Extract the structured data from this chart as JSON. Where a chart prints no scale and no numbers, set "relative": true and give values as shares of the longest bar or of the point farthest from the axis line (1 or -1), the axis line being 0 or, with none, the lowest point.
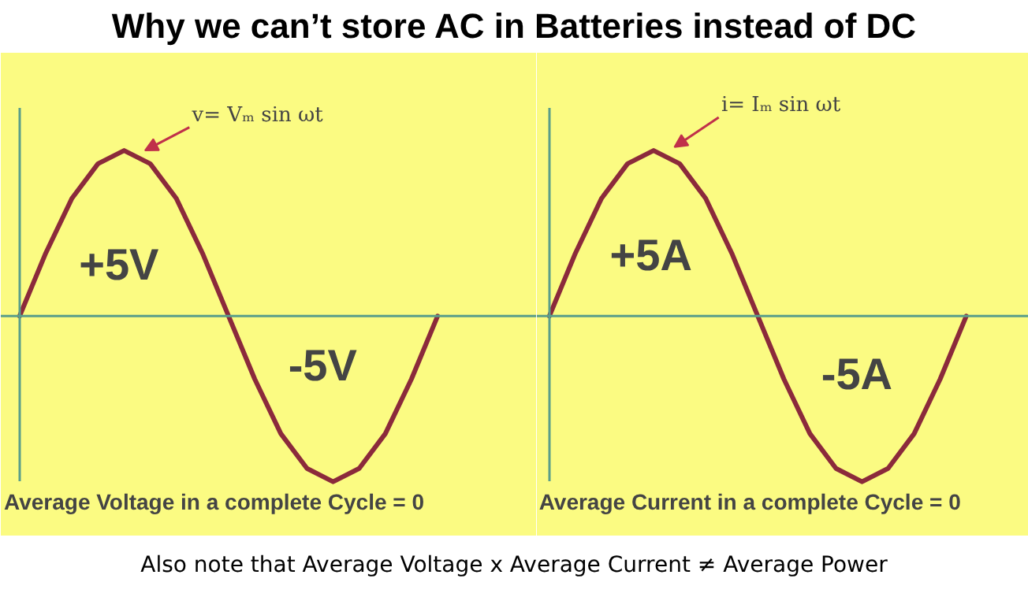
{
  "chart_data": [
    {
      "type": "line",
      "title": "Why we can’t store AC in Batteries instead of DC",
      "relative": true,
      "categories": [
        null,
        null,
        null,
        null,
        null,
        null,
        null,
        null,
        null,
        null,
        null,
        null,
        null,
        null,
        null,
        null,
        null
      ],
      "series": [
        {
          "color": "#8b2a3b",
          "values": [
            0,
            0.38,
            0.71,
            0.92,
            1,
            0.92,
            0.71,
            0.38,
            0,
            -0.38,
            -0.71,
            -0.92,
            -1,
            -0.92,
            -0.71,
            -0.38,
            0
          ]
        }
      ],
      "ref_lines": [
        {
          "axis": "y",
          "value": 0,
          "color": "#5a9e8a"
        }
      ],
      "annotations": [
        "+5V",
        "-5V",
        "v= Vₘ sin ωt",
        "Average Voltage in a complete Cycle  = 0"
      ]
    },
    {
      "type": "line",
      "relative": true,
      "categories": [
        null,
        null,
        null,
        null,
        null,
        null,
        null,
        null,
        null,
        null,
        null,
        null,
        null,
        null,
        null,
        null,
        null
      ],
      "series": [
        {
          "color": "#8b2a3b",
          "values": [
            0,
            0.38,
            0.71,
            0.92,
            1,
            0.92,
            0.71,
            0.38,
            0,
            -0.38,
            -0.71,
            -0.92,
            -1,
            -0.92,
            -0.71,
            -0.38,
            0
          ]
        }
      ],
      "ref_lines": [
        {
          "axis": "y",
          "value": 0,
          "color": "#5a9e8a"
        }
      ],
      "annotations": [
        "+5A",
        "-5A",
        "i= Iₘ sin ωt",
        "Average Current in a complete Cycle  = 0",
        "Also note that Average Voltage x Average Current ≠ Average Power"
      ]
    }
  ]
}
